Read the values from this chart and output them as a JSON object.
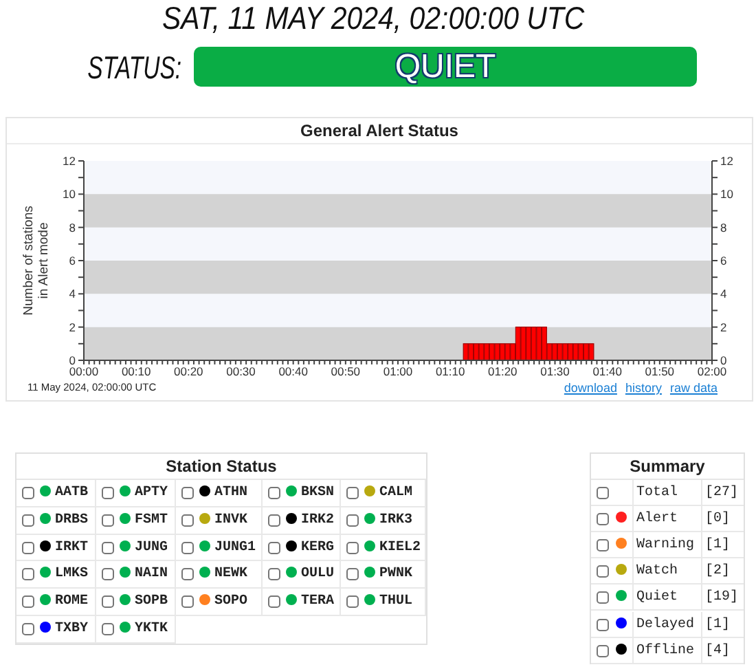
{
  "chart_data": [
    {
      "type": "other",
      "title": "SAT, 11 MAY 2024, 02:00:00 UTC",
      "annotations": [
        "STATUS:",
        "QUIET"
      ]
    },
    {
      "type": "bar",
      "title": "General Alert Status",
      "ylabel": "Number of stations in Alert mode",
      "color": "#ff0000",
      "x": [
        "2024-05-11T01:13",
        "2024-05-11T01:14",
        "2024-05-11T01:15",
        "2024-05-11T01:16",
        "2024-05-11T01:17",
        "2024-05-11T01:18",
        "2024-05-11T01:19",
        "2024-05-11T01:20",
        "2024-05-11T01:21",
        "2024-05-11T01:22",
        "2024-05-11T01:23",
        "2024-05-11T01:24",
        "2024-05-11T01:25",
        "2024-05-11T01:26",
        "2024-05-11T01:27",
        "2024-05-11T01:28",
        "2024-05-11T01:29",
        "2024-05-11T01:30",
        "2024-05-11T01:31",
        "2024-05-11T01:32",
        "2024-05-11T01:33",
        "2024-05-11T01:34",
        "2024-05-11T01:35",
        "2024-05-11T01:36",
        "2024-05-11T01:37"
      ],
      "values": [
        1,
        1,
        1,
        1,
        1,
        1,
        1,
        1,
        1,
        1,
        2,
        2,
        2,
        2,
        2,
        2,
        1,
        1,
        1,
        1,
        1,
        1,
        1,
        1,
        1
      ],
      "xlim": [
        "2024-05-11T00:00",
        "2024-05-11T02:00"
      ],
      "xticks": [
        {
          "value": "2024-05-11T00:00",
          "label": "00:00"
        },
        {
          "value": "2024-05-11T00:01",
          "label": null
        },
        {
          "value": "2024-05-11T00:02",
          "label": null
        },
        {
          "value": "2024-05-11T00:03",
          "label": null
        },
        {
          "value": "2024-05-11T00:04",
          "label": null
        },
        {
          "value": "2024-05-11T00:05",
          "label": null
        },
        {
          "value": "2024-05-11T00:06",
          "label": null
        },
        {
          "value": "2024-05-11T00:07",
          "label": null
        },
        {
          "value": "2024-05-11T00:08",
          "label": null
        },
        {
          "value": "2024-05-11T00:09",
          "label": null
        },
        {
          "value": "2024-05-11T00:10",
          "label": "00:10"
        },
        {
          "value": "2024-05-11T00:11",
          "label": null
        },
        {
          "value": "2024-05-11T00:12",
          "label": null
        },
        {
          "value": "2024-05-11T00:13",
          "label": null
        },
        {
          "value": "2024-05-11T00:14",
          "label": null
        },
        {
          "value": "2024-05-11T00:15",
          "label": null
        },
        {
          "value": "2024-05-11T00:16",
          "label": null
        },
        {
          "value": "2024-05-11T00:17",
          "label": null
        },
        {
          "value": "2024-05-11T00:18",
          "label": null
        },
        {
          "value": "2024-05-11T00:19",
          "label": null
        },
        {
          "value": "2024-05-11T00:20",
          "label": "00:20"
        },
        {
          "value": "2024-05-11T00:21",
          "label": null
        },
        {
          "value": "2024-05-11T00:22",
          "label": null
        },
        {
          "value": "2024-05-11T00:23",
          "label": null
        },
        {
          "value": "2024-05-11T00:24",
          "label": null
        },
        {
          "value": "2024-05-11T00:25",
          "label": null
        },
        {
          "value": "2024-05-11T00:26",
          "label": null
        },
        {
          "value": "2024-05-11T00:27",
          "label": null
        },
        {
          "value": "2024-05-11T00:28",
          "label": null
        },
        {
          "value": "2024-05-11T00:29",
          "label": null
        },
        {
          "value": "2024-05-11T00:30",
          "label": "00:30"
        },
        {
          "value": "2024-05-11T00:31",
          "label": null
        },
        {
          "value": "2024-05-11T00:32",
          "label": null
        },
        {
          "value": "2024-05-11T00:33",
          "label": null
        },
        {
          "value": "2024-05-11T00:34",
          "label": null
        },
        {
          "value": "2024-05-11T00:35",
          "label": null
        },
        {
          "value": "2024-05-11T00:36",
          "label": null
        },
        {
          "value": "2024-05-11T00:37",
          "label": null
        },
        {
          "value": "2024-05-11T00:38",
          "label": null
        },
        {
          "value": "2024-05-11T00:39",
          "label": null
        },
        {
          "value": "2024-05-11T00:40",
          "label": "00:40"
        },
        {
          "value": "2024-05-11T00:41",
          "label": null
        },
        {
          "value": "2024-05-11T00:42",
          "label": null
        },
        {
          "value": "2024-05-11T00:43",
          "label": null
        },
        {
          "value": "2024-05-11T00:44",
          "label": null
        },
        {
          "value": "2024-05-11T00:45",
          "label": null
        },
        {
          "value": "2024-05-11T00:46",
          "label": null
        },
        {
          "value": "2024-05-11T00:47",
          "label": null
        },
        {
          "value": "2024-05-11T00:48",
          "label": null
        },
        {
          "value": "2024-05-11T00:49",
          "label": null
        },
        {
          "value": "2024-05-11T00:50",
          "label": "00:50"
        },
        {
          "value": "2024-05-11T00:51",
          "label": null
        },
        {
          "value": "2024-05-11T00:52",
          "label": null
        },
        {
          "value": "2024-05-11T00:53",
          "label": null
        },
        {
          "value": "2024-05-11T00:54",
          "label": null
        },
        {
          "value": "2024-05-11T00:55",
          "label": null
        },
        {
          "value": "2024-05-11T00:56",
          "label": null
        },
        {
          "value": "2024-05-11T00:57",
          "label": null
        },
        {
          "value": "2024-05-11T00:58",
          "label": null
        },
        {
          "value": "2024-05-11T00:59",
          "label": null
        },
        {
          "value": "2024-05-11T01:00",
          "label": "01:00"
        },
        {
          "value": "2024-05-11T01:01",
          "label": null
        },
        {
          "value": "2024-05-11T01:02",
          "label": null
        },
        {
          "value": "2024-05-11T01:03",
          "label": null
        },
        {
          "value": "2024-05-11T01:04",
          "label": null
        },
        {
          "value": "2024-05-11T01:05",
          "label": null
        },
        {
          "value": "2024-05-11T01:06",
          "label": null
        },
        {
          "value": "2024-05-11T01:07",
          "label": null
        },
        {
          "value": "2024-05-11T01:08",
          "label": null
        },
        {
          "value": "2024-05-11T01:09",
          "label": null
        },
        {
          "value": "2024-05-11T01:10",
          "label": "01:10"
        },
        {
          "value": "2024-05-11T01:11",
          "label": null
        },
        {
          "value": "2024-05-11T01:12",
          "label": null
        },
        {
          "value": "2024-05-11T01:13",
          "label": null
        },
        {
          "value": "2024-05-11T01:14",
          "label": null
        },
        {
          "value": "2024-05-11T01:15",
          "label": null
        },
        {
          "value": "2024-05-11T01:16",
          "label": null
        },
        {
          "value": "2024-05-11T01:17",
          "label": null
        },
        {
          "value": "2024-05-11T01:18",
          "label": null
        },
        {
          "value": "2024-05-11T01:19",
          "label": null
        },
        {
          "value": "2024-05-11T01:20",
          "label": "01:20"
        },
        {
          "value": "2024-05-11T01:21",
          "label": null
        },
        {
          "value": "2024-05-11T01:22",
          "label": null
        },
        {
          "value": "2024-05-11T01:23",
          "label": null
        },
        {
          "value": "2024-05-11T01:24",
          "label": null
        },
        {
          "value": "2024-05-11T01:25",
          "label": null
        },
        {
          "value": "2024-05-11T01:26",
          "label": null
        },
        {
          "value": "2024-05-11T01:27",
          "label": null
        },
        {
          "value": "2024-05-11T01:28",
          "label": null
        },
        {
          "value": "2024-05-11T01:29",
          "label": null
        },
        {
          "value": "2024-05-11T01:30",
          "label": "01:30"
        },
        {
          "value": "2024-05-11T01:31",
          "label": null
        },
        {
          "value": "2024-05-11T01:32",
          "label": null
        },
        {
          "value": "2024-05-11T01:33",
          "label": null
        },
        {
          "value": "2024-05-11T01:34",
          "label": null
        },
        {
          "value": "2024-05-11T01:35",
          "label": null
        },
        {
          "value": "2024-05-11T01:36",
          "label": null
        },
        {
          "value": "2024-05-11T01:37",
          "label": null
        },
        {
          "value": "2024-05-11T01:38",
          "label": null
        },
        {
          "value": "2024-05-11T01:39",
          "label": null
        },
        {
          "value": "2024-05-11T01:40",
          "label": "01:40"
        },
        {
          "value": "2024-05-11T01:41",
          "label": null
        },
        {
          "value": "2024-05-11T01:42",
          "label": null
        },
        {
          "value": "2024-05-11T01:43",
          "label": null
        },
        {
          "value": "2024-05-11T01:44",
          "label": null
        },
        {
          "value": "2024-05-11T01:45",
          "label": null
        },
        {
          "value": "2024-05-11T01:46",
          "label": null
        },
        {
          "value": "2024-05-11T01:47",
          "label": null
        },
        {
          "value": "2024-05-11T01:48",
          "label": null
        },
        {
          "value": "2024-05-11T01:49",
          "label": null
        },
        {
          "value": "2024-05-11T01:50",
          "label": "01:50"
        },
        {
          "value": "2024-05-11T01:51",
          "label": null
        },
        {
          "value": "2024-05-11T01:52",
          "label": null
        },
        {
          "value": "2024-05-11T01:53",
          "label": null
        },
        {
          "value": "2024-05-11T01:54",
          "label": null
        },
        {
          "value": "2024-05-11T01:55",
          "label": null
        },
        {
          "value": "2024-05-11T01:56",
          "label": null
        },
        {
          "value": "2024-05-11T01:57",
          "label": null
        },
        {
          "value": "2024-05-11T01:58",
          "label": null
        },
        {
          "value": "2024-05-11T01:59",
          "label": null
        },
        {
          "value": "2024-05-11T02:00",
          "label": "02:00"
        }
      ],
      "ylim": [
        0,
        12
      ],
      "yticks": [
        0,
        {
          "value": 1,
          "label": null
        },
        2,
        {
          "value": 3,
          "label": null
        },
        4,
        {
          "value": 5,
          "label": null
        },
        6,
        {
          "value": 7,
          "label": null
        },
        8,
        {
          "value": 9,
          "label": null
        },
        10,
        {
          "value": 11,
          "label": null
        },
        12
      ],
      "y2lim": [
        0,
        12
      ],
      "y2ticks": [
        0,
        {
          "value": 1,
          "label": null
        },
        2,
        {
          "value": 3,
          "label": null
        },
        4,
        {
          "value": 5,
          "label": null
        },
        6,
        {
          "value": 7,
          "label": null
        },
        8,
        {
          "value": 9,
          "label": null
        },
        10,
        {
          "value": 11,
          "label": null
        },
        12
      ],
      "bands": [
        {
          "axis": "y",
          "from": 0,
          "to": 2,
          "color": "#d3d3d3"
        },
        {
          "axis": "y",
          "from": 4,
          "to": 6,
          "color": "#d3d3d3"
        },
        {
          "axis": "y",
          "from": 8,
          "to": 10,
          "color": "#d3d3d3"
        }
      ],
      "annotations": [
        "11 May 2024, 02:00:00 UTC",
        "download",
        "history",
        "raw data"
      ]
    },
    {
      "type": "other",
      "title": "Station Status",
      "categories": [
        "AATB",
        "APTY",
        "ATHN",
        "BKSN",
        "CALM",
        "DRBS",
        "FSMT",
        "INVK",
        "IRK2",
        "IRK3",
        "IRKT",
        "JUNG",
        "JUNG1",
        "KERG",
        "KIEL2",
        "LMKS",
        "NAIN",
        "NEWK",
        "OULU",
        "PWNK",
        "ROME",
        "SOPB",
        "SOPO",
        "TERA",
        "THUL",
        "TXBY",
        "YKTK"
      ],
      "colors": [
        "#00b050",
        "#00b050",
        "#000000",
        "#00b050",
        "#b8a90f",
        "#00b050",
        "#00b050",
        "#b8a90f",
        "#000000",
        "#00b050",
        "#000000",
        "#00b050",
        "#00b050",
        "#000000",
        "#00b050",
        "#00b050",
        "#00b050",
        "#00b050",
        "#00b050",
        "#00b050",
        "#00b050",
        "#00b050",
        "#ff8020",
        "#00b050",
        "#00b050",
        "#0000ff",
        "#00b050"
      ]
    },
    {
      "type": "other",
      "title": "Summary",
      "categories": [
        "Total",
        "Alert",
        "Warning",
        "Watch",
        "Quiet",
        "Delayed",
        "Offline"
      ],
      "values": [
        27,
        0,
        1,
        2,
        19,
        1,
        4
      ],
      "value_labels": [
        "[27]",
        "[0]",
        "[1]",
        "[2]",
        "[19]",
        "[1]",
        "[4]"
      ],
      "colors": [
        null,
        "#ff2020",
        "#ff8020",
        "#b8a90f",
        "#00b050",
        "#0000ff",
        "#000000"
      ]
    }
  ]
}
